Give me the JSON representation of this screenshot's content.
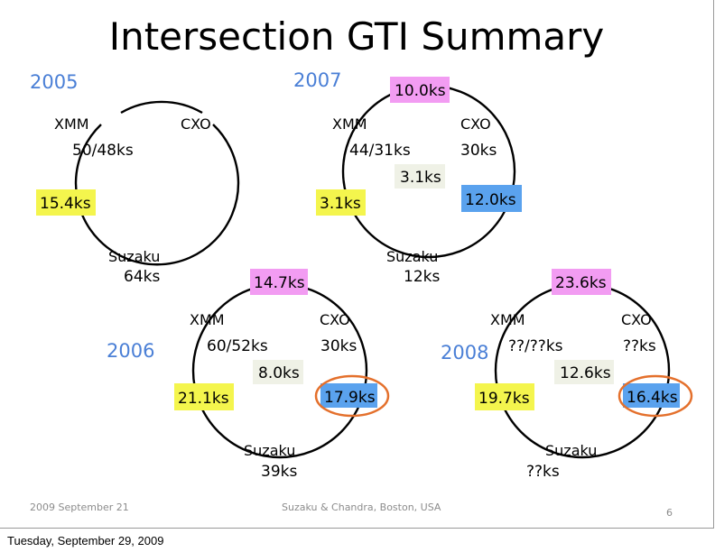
{
  "title": "Intersection GTI Summary",
  "diagrams": {
    "d2005": {
      "year": "2005",
      "xmm": "XMM",
      "cxo": "CXO",
      "suzaku": "Suzaku",
      "xmm_val": "50/48ks",
      "suzaku_val": "64ks",
      "xmm_suzaku": "15.4ks"
    },
    "d2007": {
      "year": "2007",
      "xmm": "XMM",
      "cxo": "CXO",
      "suzaku": "Suzaku",
      "xmm_val": "44/31ks",
      "cxo_val": "30ks",
      "suzaku_val": "12ks",
      "xmm_cxo": "10.0ks",
      "center": "3.1ks",
      "xmm_suzaku": "3.1ks",
      "cxo_suzaku": "12.0ks"
    },
    "d2006": {
      "year": "2006",
      "xmm": "XMM",
      "cxo": "CXO",
      "suzaku": "Suzaku",
      "xmm_val": "60/52ks",
      "cxo_val": "30ks",
      "suzaku_val": "39ks",
      "xmm_cxo": "14.7ks",
      "center": "8.0ks",
      "xmm_suzaku": "21.1ks",
      "cxo_suzaku": "17.9ks"
    },
    "d2008": {
      "year": "2008",
      "xmm": "XMM",
      "cxo": "CXO",
      "suzaku": "Suzaku",
      "xmm_val": "??/??ks",
      "cxo_val": "??ks",
      "suzaku_val": "??ks",
      "xmm_cxo": "23.6ks",
      "center": "12.6ks",
      "xmm_suzaku": "19.7ks",
      "cxo_suzaku": "16.4ks"
    }
  },
  "footer": {
    "date": "2009 September 21",
    "venue": "Suzaku & Chandra, Boston, USA",
    "page": "6"
  },
  "bottom_date": "Tuesday, September 29, 2009",
  "colors": {
    "year": "#4a7fd6",
    "yellow": "#f4f54d",
    "pink": "#f29cf2",
    "blue": "#5aa2ee",
    "grey": "#eff1e6",
    "highlight_ring": "#e4702c"
  }
}
